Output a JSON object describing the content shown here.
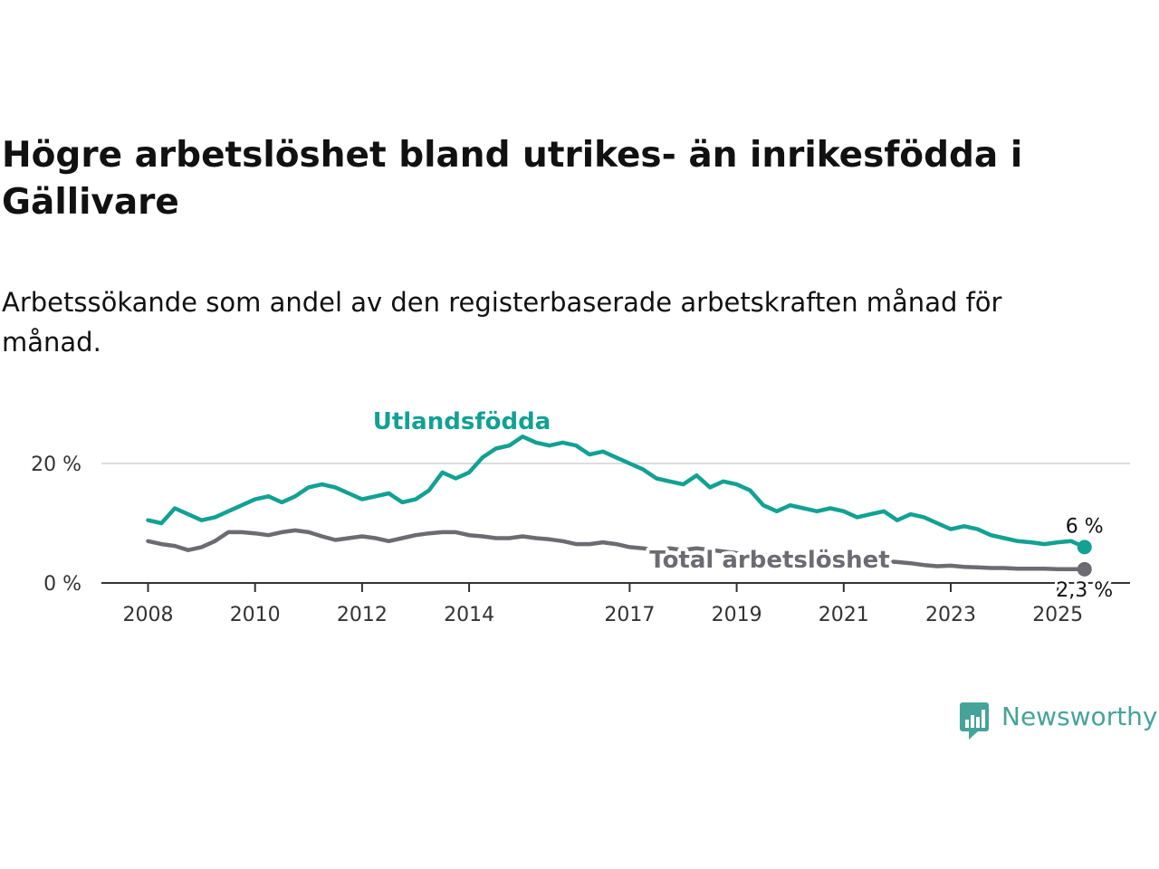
{
  "title": "Högre arbetslöshet bland utrikes- än inrikesfödda i Gällivare",
  "subtitle": "Arbetssökande som andel av den registerbaserade arbetskraften månad för månad.",
  "brand": {
    "name": "Newsworthy",
    "color": "#46A39A",
    "icon": "bar-chart-speech-bubble-icon"
  },
  "colors": {
    "foreign": "#12A193",
    "total": "#6D6B72",
    "grid": "#DDDDDD",
    "axis": "#333333"
  },
  "chart_data": {
    "type": "line",
    "x_ticks": [
      "2008",
      "2010",
      "2012",
      "2014",
      "2017",
      "2019",
      "2021",
      "2023",
      "2025"
    ],
    "y_ticks": [
      "0 %",
      "20 %"
    ],
    "ylim": [
      0,
      24
    ],
    "grid": "horizontal",
    "series": [
      {
        "name": "Utlandsfödda",
        "end_label": "6 %",
        "values": [
          [
            2008.0,
            10.5
          ],
          [
            2008.25,
            10.0
          ],
          [
            2008.5,
            12.5
          ],
          [
            2008.75,
            11.5
          ],
          [
            2009.0,
            10.5
          ],
          [
            2009.25,
            11.0
          ],
          [
            2009.5,
            12.0
          ],
          [
            2009.75,
            13.0
          ],
          [
            2010.0,
            14.0
          ],
          [
            2010.25,
            14.5
          ],
          [
            2010.5,
            13.5
          ],
          [
            2010.75,
            14.5
          ],
          [
            2011.0,
            16.0
          ],
          [
            2011.25,
            16.5
          ],
          [
            2011.5,
            16.0
          ],
          [
            2011.75,
            15.0
          ],
          [
            2012.0,
            14.0
          ],
          [
            2012.25,
            14.5
          ],
          [
            2012.5,
            15.0
          ],
          [
            2012.75,
            13.5
          ],
          [
            2013.0,
            14.0
          ],
          [
            2013.25,
            15.5
          ],
          [
            2013.5,
            18.5
          ],
          [
            2013.75,
            17.5
          ],
          [
            2014.0,
            18.5
          ],
          [
            2014.25,
            21.0
          ],
          [
            2014.5,
            22.5
          ],
          [
            2014.75,
            23.0
          ],
          [
            2015.0,
            24.5
          ],
          [
            2015.25,
            23.5
          ],
          [
            2015.5,
            23.0
          ],
          [
            2015.75,
            23.5
          ],
          [
            2016.0,
            23.0
          ],
          [
            2016.25,
            21.5
          ],
          [
            2016.5,
            22.0
          ],
          [
            2016.75,
            21.0
          ],
          [
            2017.0,
            20.0
          ],
          [
            2017.25,
            19.0
          ],
          [
            2017.5,
            17.5
          ],
          [
            2017.75,
            17.0
          ],
          [
            2018.0,
            16.5
          ],
          [
            2018.25,
            18.0
          ],
          [
            2018.5,
            16.0
          ],
          [
            2018.75,
            17.0
          ],
          [
            2019.0,
            16.5
          ],
          [
            2019.25,
            15.5
          ],
          [
            2019.5,
            13.0
          ],
          [
            2019.75,
            12.0
          ],
          [
            2020.0,
            13.0
          ],
          [
            2020.25,
            12.5
          ],
          [
            2020.5,
            12.0
          ],
          [
            2020.75,
            12.5
          ],
          [
            2021.0,
            12.0
          ],
          [
            2021.25,
            11.0
          ],
          [
            2021.5,
            11.5
          ],
          [
            2021.75,
            12.0
          ],
          [
            2022.0,
            10.5
          ],
          [
            2022.25,
            11.5
          ],
          [
            2022.5,
            11.0
          ],
          [
            2022.75,
            10.0
          ],
          [
            2023.0,
            9.0
          ],
          [
            2023.25,
            9.5
          ],
          [
            2023.5,
            9.0
          ],
          [
            2023.75,
            8.0
          ],
          [
            2024.0,
            7.5
          ],
          [
            2024.25,
            7.0
          ],
          [
            2024.5,
            6.8
          ],
          [
            2024.75,
            6.5
          ],
          [
            2025.0,
            6.8
          ],
          [
            2025.25,
            7.0
          ],
          [
            2025.5,
            6.0
          ]
        ]
      },
      {
        "name": "Total arbetslöshet",
        "end_label": "2,3 %",
        "values": [
          [
            2008.0,
            7.0
          ],
          [
            2008.25,
            6.5
          ],
          [
            2008.5,
            6.2
          ],
          [
            2008.75,
            5.5
          ],
          [
            2009.0,
            6.0
          ],
          [
            2009.25,
            7.0
          ],
          [
            2009.5,
            8.5
          ],
          [
            2009.75,
            8.5
          ],
          [
            2010.0,
            8.3
          ],
          [
            2010.25,
            8.0
          ],
          [
            2010.5,
            8.5
          ],
          [
            2010.75,
            8.8
          ],
          [
            2011.0,
            8.5
          ],
          [
            2011.25,
            7.8
          ],
          [
            2011.5,
            7.2
          ],
          [
            2011.75,
            7.5
          ],
          [
            2012.0,
            7.8
          ],
          [
            2012.25,
            7.5
          ],
          [
            2012.5,
            7.0
          ],
          [
            2012.75,
            7.5
          ],
          [
            2013.0,
            8.0
          ],
          [
            2013.25,
            8.3
          ],
          [
            2013.5,
            8.5
          ],
          [
            2013.75,
            8.5
          ],
          [
            2014.0,
            8.0
          ],
          [
            2014.25,
            7.8
          ],
          [
            2014.5,
            7.5
          ],
          [
            2014.75,
            7.5
          ],
          [
            2015.0,
            7.8
          ],
          [
            2015.25,
            7.5
          ],
          [
            2015.5,
            7.3
          ],
          [
            2015.75,
            7.0
          ],
          [
            2016.0,
            6.5
          ],
          [
            2016.25,
            6.5
          ],
          [
            2016.5,
            6.8
          ],
          [
            2016.75,
            6.5
          ],
          [
            2017.0,
            6.0
          ],
          [
            2017.25,
            5.8
          ],
          [
            2017.5,
            5.5
          ],
          [
            2017.75,
            5.8
          ],
          [
            2018.0,
            5.5
          ],
          [
            2018.25,
            5.8
          ],
          [
            2019.0,
            5.0
          ],
          [
            2019.5,
            4.6
          ],
          [
            2020.0,
            4.5
          ],
          [
            2020.5,
            4.3
          ],
          [
            2021.0,
            4.0
          ],
          [
            2021.5,
            3.8
          ],
          [
            2022.0,
            3.5
          ],
          [
            2022.25,
            3.3
          ],
          [
            2022.5,
            3.0
          ],
          [
            2022.75,
            2.8
          ],
          [
            2023.0,
            2.9
          ],
          [
            2023.25,
            2.7
          ],
          [
            2023.5,
            2.6
          ],
          [
            2023.75,
            2.5
          ],
          [
            2024.0,
            2.5
          ],
          [
            2024.25,
            2.4
          ],
          [
            2024.5,
            2.4
          ],
          [
            2024.75,
            2.4
          ],
          [
            2025.0,
            2.3
          ],
          [
            2025.25,
            2.3
          ],
          [
            2025.5,
            2.3
          ]
        ]
      }
    ]
  }
}
